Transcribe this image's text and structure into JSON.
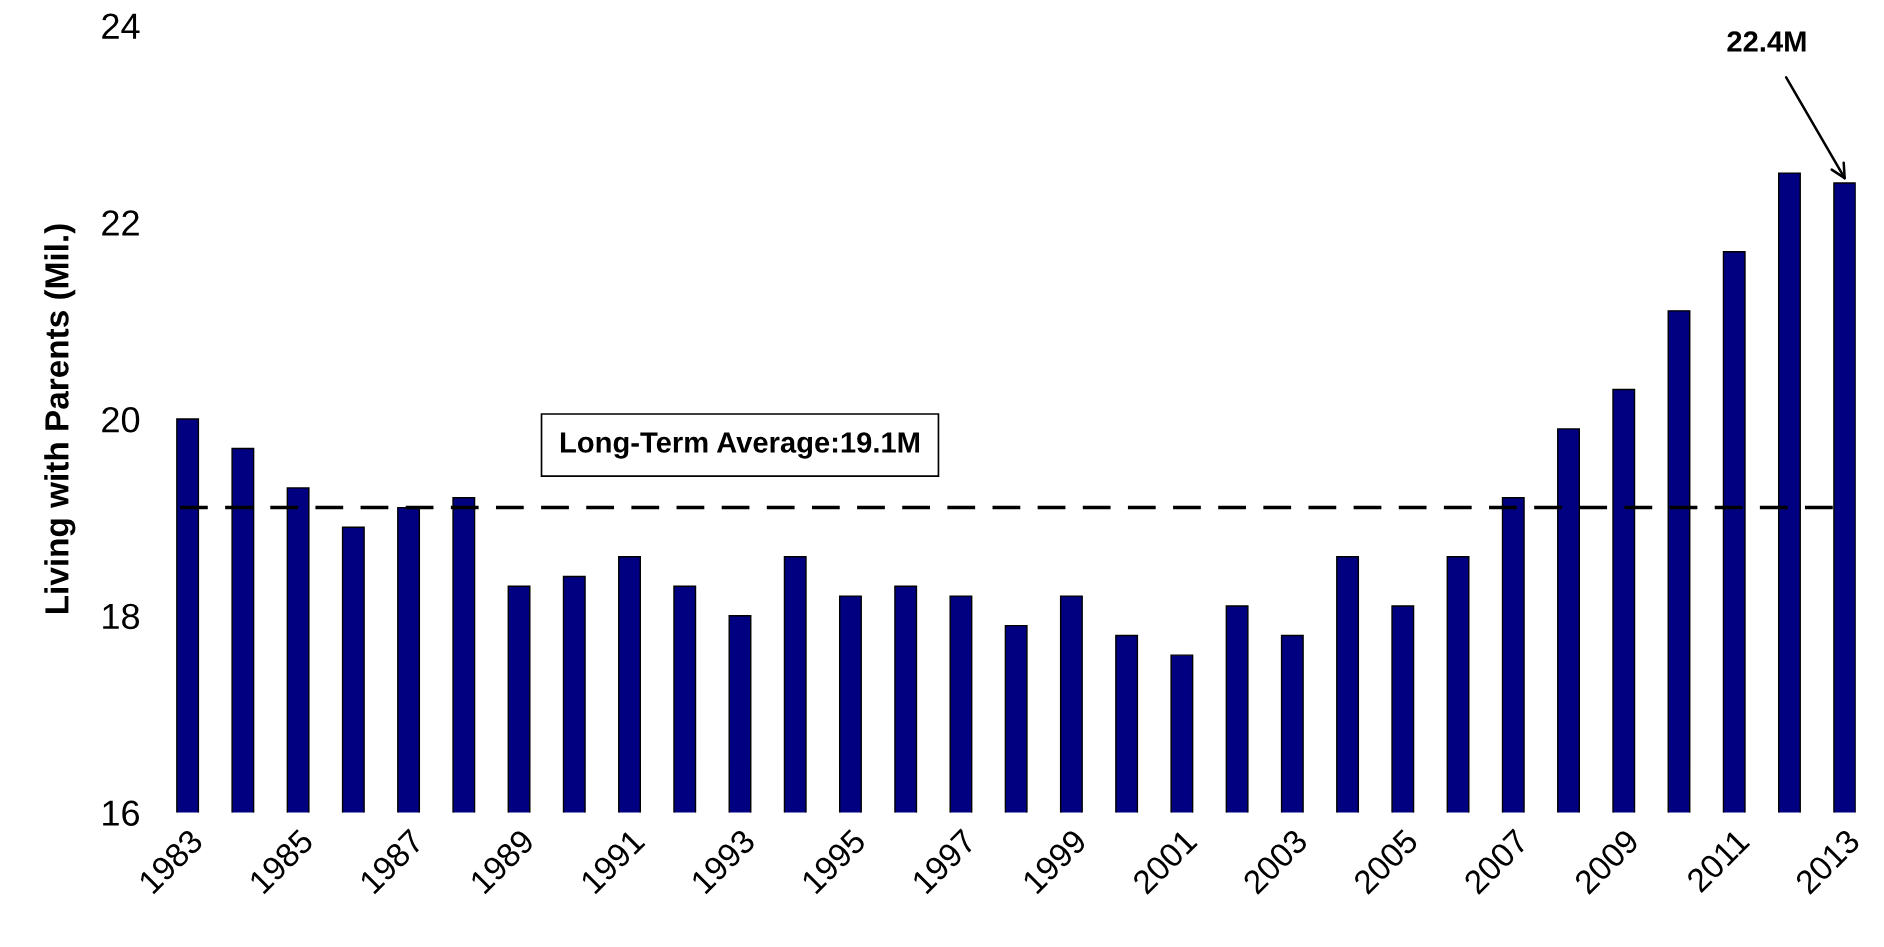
{
  "chart_data": {
    "type": "bar",
    "ylabel": "Living with Parents (Mil.)",
    "categories": [
      "1983",
      null,
      "1985",
      null,
      "1987",
      null,
      "1989",
      null,
      "1991",
      null,
      "1993",
      null,
      "1995",
      null,
      "1997",
      null,
      "1999",
      null,
      "2001",
      null,
      "2003",
      null,
      "2005",
      null,
      "2007",
      null,
      "2009",
      null,
      "2011",
      null,
      "2013"
    ],
    "values": [
      20.0,
      19.7,
      19.3,
      18.9,
      19.1,
      19.2,
      18.3,
      18.4,
      18.6,
      18.3,
      18.0,
      18.6,
      18.2,
      18.3,
      18.2,
      17.9,
      18.2,
      17.8,
      17.6,
      18.1,
      17.8,
      18.6,
      18.1,
      18.6,
      19.2,
      19.9,
      20.3,
      21.1,
      21.7,
      22.5,
      22.4
    ],
    "color": "#000080",
    "ylim": [
      16,
      24
    ],
    "yticks": [
      16,
      18,
      20,
      22,
      24
    ],
    "grid": false,
    "ref_lines": [
      {
        "axis": "y",
        "value": 19.1,
        "label": "Long-Term Average:19.1M",
        "color": "#000000",
        "line_style": "dashed"
      }
    ],
    "annotations": [
      "22.4M"
    ]
  }
}
